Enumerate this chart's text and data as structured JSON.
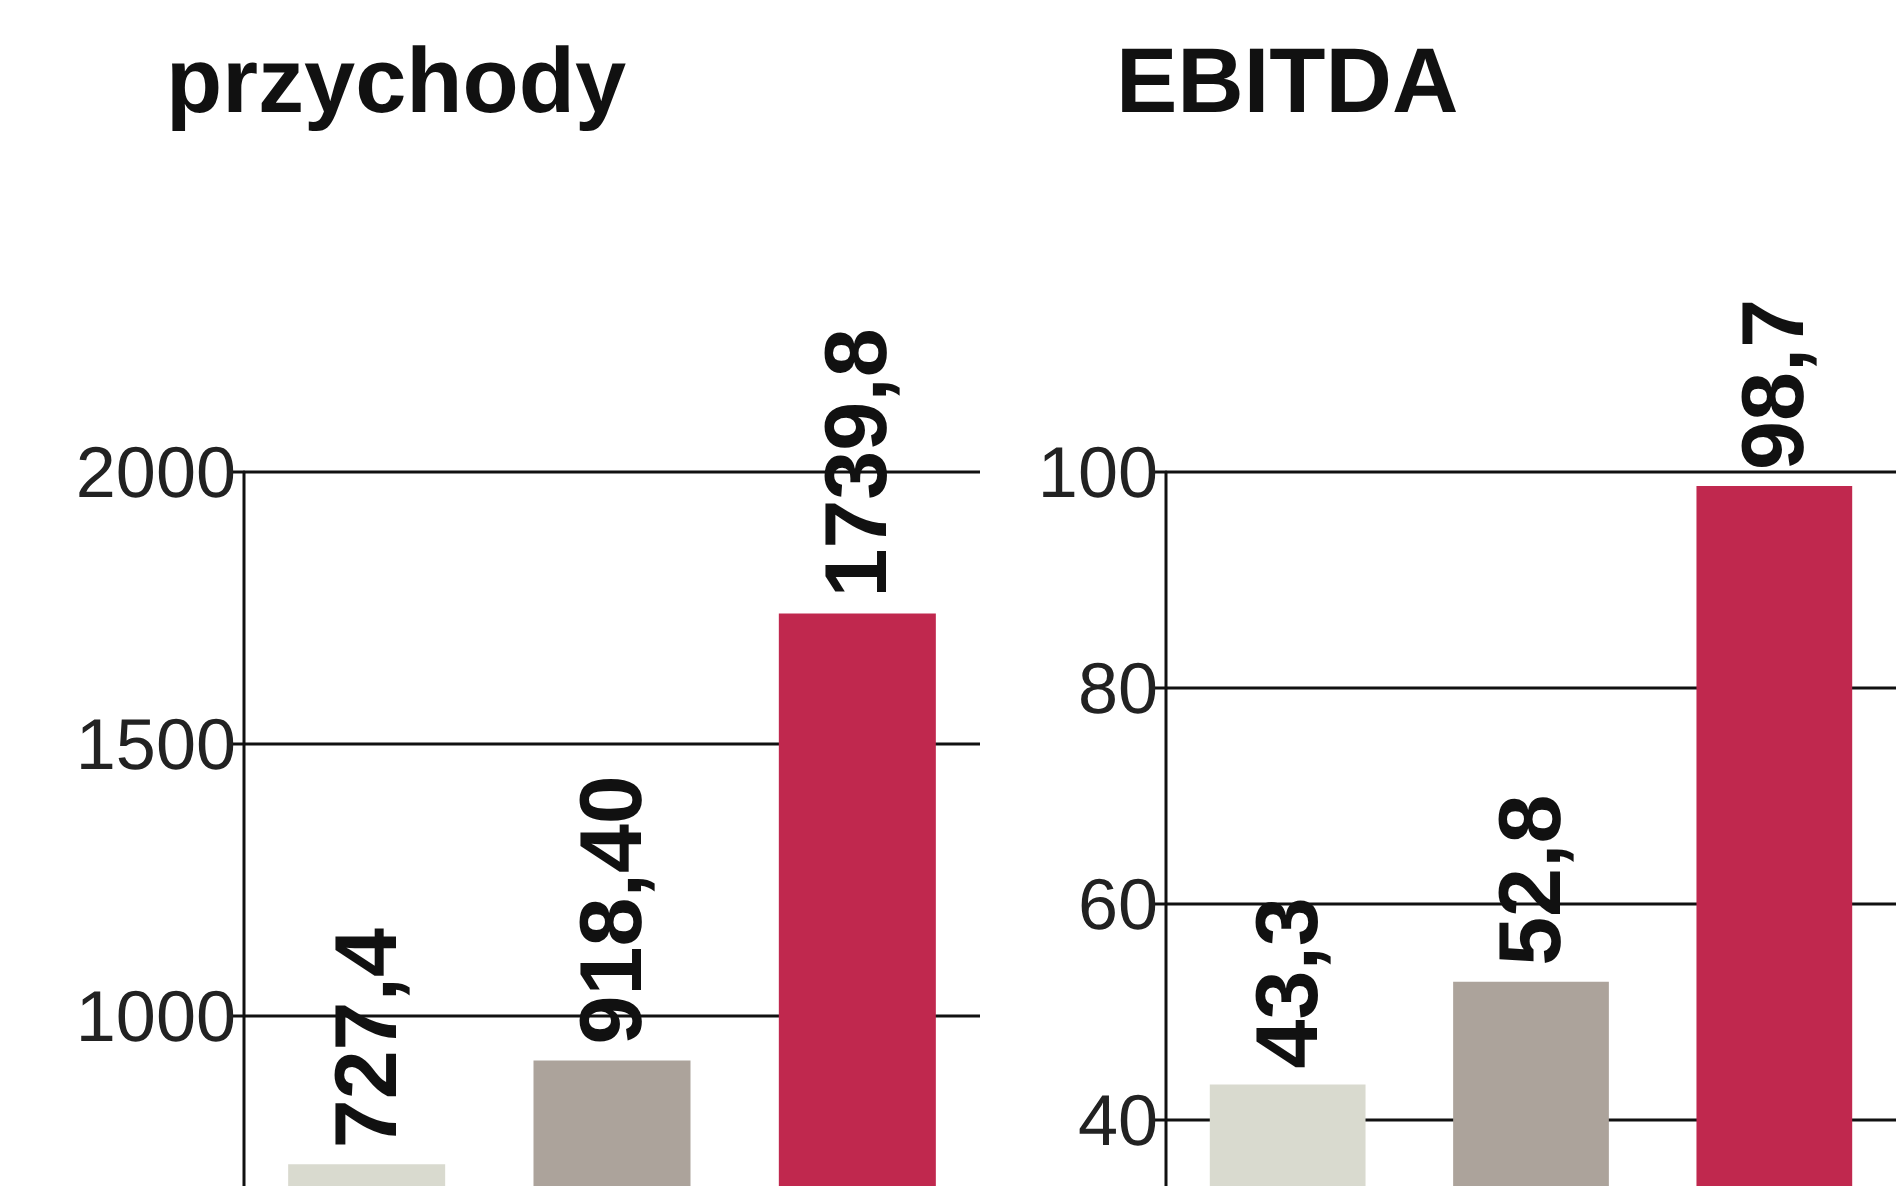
{
  "chart_data": [
    {
      "type": "bar",
      "title": "przychody",
      "categories": [
        null,
        null,
        null
      ],
      "values": [
        727.4,
        918.4,
        1739.8
      ],
      "colors": [
        "#d9dacf",
        "#aca39b",
        "#c0284e"
      ],
      "value_labels": [
        "727,4",
        "918,40",
        "1739,8"
      ],
      "ylim": [
        687.5,
        2000
      ],
      "yticks": [
        1000,
        1500,
        2000
      ],
      "grid": "y",
      "tick_labels": "y"
    },
    {
      "type": "bar",
      "title": "EBITDA",
      "categories": [
        null,
        null,
        null
      ],
      "values": [
        43.3,
        52.8,
        98.7
      ],
      "colors": [
        "#d9dacf",
        "#aca39b",
        "#c0284e"
      ],
      "value_labels": [
        "43,3",
        "52,8",
        "98,7"
      ],
      "ylim": [
        33.9,
        100
      ],
      "yticks": [
        40,
        60,
        80,
        100
      ],
      "grid": "y",
      "tick_labels": "y"
    }
  ]
}
